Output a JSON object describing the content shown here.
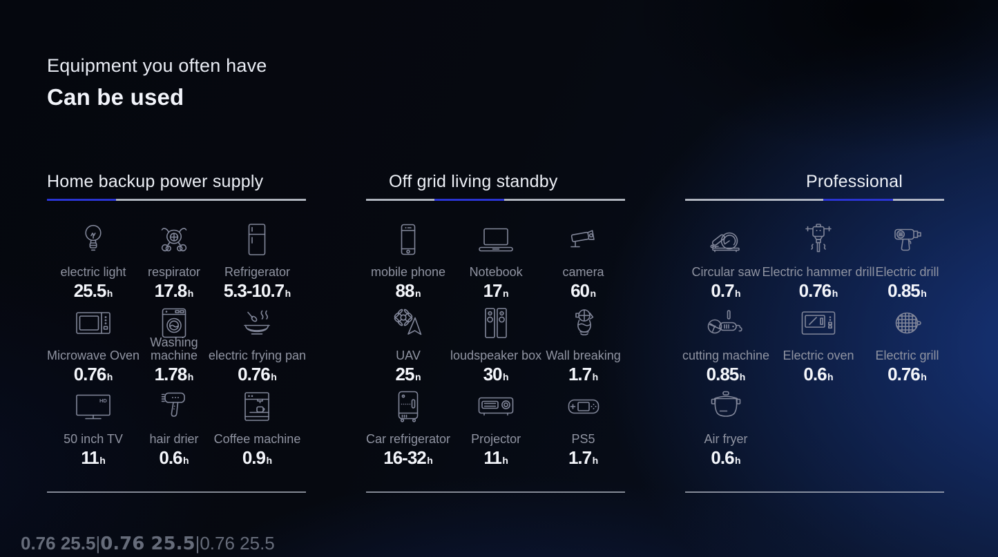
{
  "title": {
    "line1": "Equipment you often have",
    "line2": "Can be used"
  },
  "colors": {
    "accent_blue": "#2A34D2",
    "rule_gray": "#CDD1DB",
    "label_gray": "#9094A2",
    "value_white": "#F4F6FB",
    "icon_gray": "#82879A"
  },
  "columns": [
    {
      "header": "Home backup power supply",
      "progress": {
        "left_pct": 0,
        "width_pct": 26.7
      },
      "items": [
        {
          "icon": "light-bulb-icon",
          "label": "electric light",
          "value": "25.5",
          "unit": "h"
        },
        {
          "icon": "respirator-icon",
          "label": "respirator",
          "value": "17.8",
          "unit": "h"
        },
        {
          "icon": "refrigerator-icon",
          "label": "Refrigerator",
          "value": "5.3-10.7",
          "unit": "h"
        },
        {
          "icon": "microwave-oven-icon",
          "label": "Microwave Oven",
          "value": "0.76",
          "unit": "h"
        },
        {
          "icon": "washing-machine-icon",
          "label": "Washing\nmachine",
          "value": "1.78",
          "unit": "h"
        },
        {
          "icon": "electric-frying-pan-icon",
          "label": "electric frying pan",
          "value": "0.76",
          "unit": "h"
        },
        {
          "icon": "tv-icon",
          "label": "50 inch TV",
          "value": "11",
          "unit": "h"
        },
        {
          "icon": "hair-drier-icon",
          "label": "hair drier",
          "value": "0.6",
          "unit": "h"
        },
        {
          "icon": "coffee-machine-icon",
          "label": "Coffee machine",
          "value": "0.9",
          "unit": "h"
        }
      ]
    },
    {
      "header": "Off grid living standby",
      "progress": {
        "left_pct": 26.5,
        "width_pct": 26.7
      },
      "items": [
        {
          "icon": "mobile-phone-icon",
          "label": "mobile phone",
          "value": "88",
          "unit": "n"
        },
        {
          "icon": "notebook-icon",
          "label": "Notebook",
          "value": "17",
          "unit": "n"
        },
        {
          "icon": "cctv-camera-icon",
          "label": "camera",
          "value": "60",
          "unit": "n"
        },
        {
          "icon": "uav-drone-icon",
          "label": "UAV",
          "value": "25",
          "unit": "n"
        },
        {
          "icon": "loudspeaker-icon",
          "label": "loudspeaker box",
          "value": "30",
          "unit": "h"
        },
        {
          "icon": "wall-breaking-icon",
          "label": "Wall breaking",
          "value": "1.7",
          "unit": "h"
        },
        {
          "icon": "car-refrigerator-icon",
          "label": "Car refrigerator",
          "value": "16-32",
          "unit": "h"
        },
        {
          "icon": "projector-icon",
          "label": "Projector",
          "value": "11",
          "unit": "h"
        },
        {
          "icon": "ps5-icon",
          "label": "PS5",
          "value": "1.7",
          "unit": "h"
        }
      ]
    },
    {
      "header": "Professional",
      "progress": {
        "left_pct": 53.3,
        "width_pct": 27
      },
      "items": [
        {
          "icon": "circular-saw-icon",
          "label": "Circular saw",
          "value": "0.7",
          "unit": "h"
        },
        {
          "icon": "electric-hammer-drill-icon",
          "label": "Electric hammer drill",
          "value": "0.76",
          "unit": "h"
        },
        {
          "icon": "electric-drill-icon",
          "label": "Electric drill",
          "value": "0.85",
          "unit": "h"
        },
        {
          "icon": "cutting-machine-icon",
          "label": "cutting machine",
          "value": "0.85",
          "unit": "h"
        },
        {
          "icon": "electric-oven-icon",
          "label": "Electric oven",
          "value": "0.6",
          "unit": "h"
        },
        {
          "icon": "electric-grill-icon",
          "label": "Electric grill",
          "value": "0.76",
          "unit": "h"
        },
        {
          "icon": "air-fryer-icon",
          "label": "Air fryer",
          "value": "0.6",
          "unit": "h"
        }
      ]
    }
  ]
}
